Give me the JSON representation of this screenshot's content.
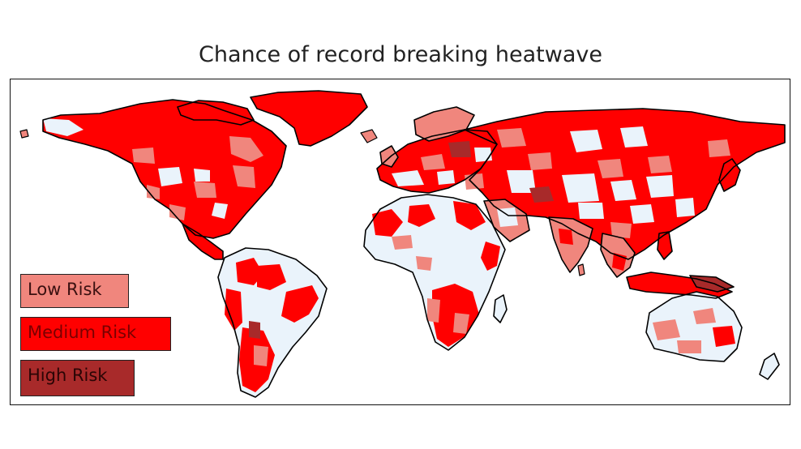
{
  "title": "Chance of record breaking heatwave",
  "legend": [
    {
      "label": "Low Risk",
      "color": "#f0867d",
      "text_color": "#3a1010"
    },
    {
      "label": "Medium Risk",
      "color": "#ff0000",
      "text_color": "#7a0000"
    },
    {
      "label": "High Risk",
      "color": "#a82a2a",
      "text_color": "#2a0505"
    }
  ],
  "colors": {
    "no_risk": "#eaf3fb",
    "low": "#f0867d",
    "medium": "#ff0000",
    "high": "#a82a2a",
    "coast": "#000000"
  }
}
